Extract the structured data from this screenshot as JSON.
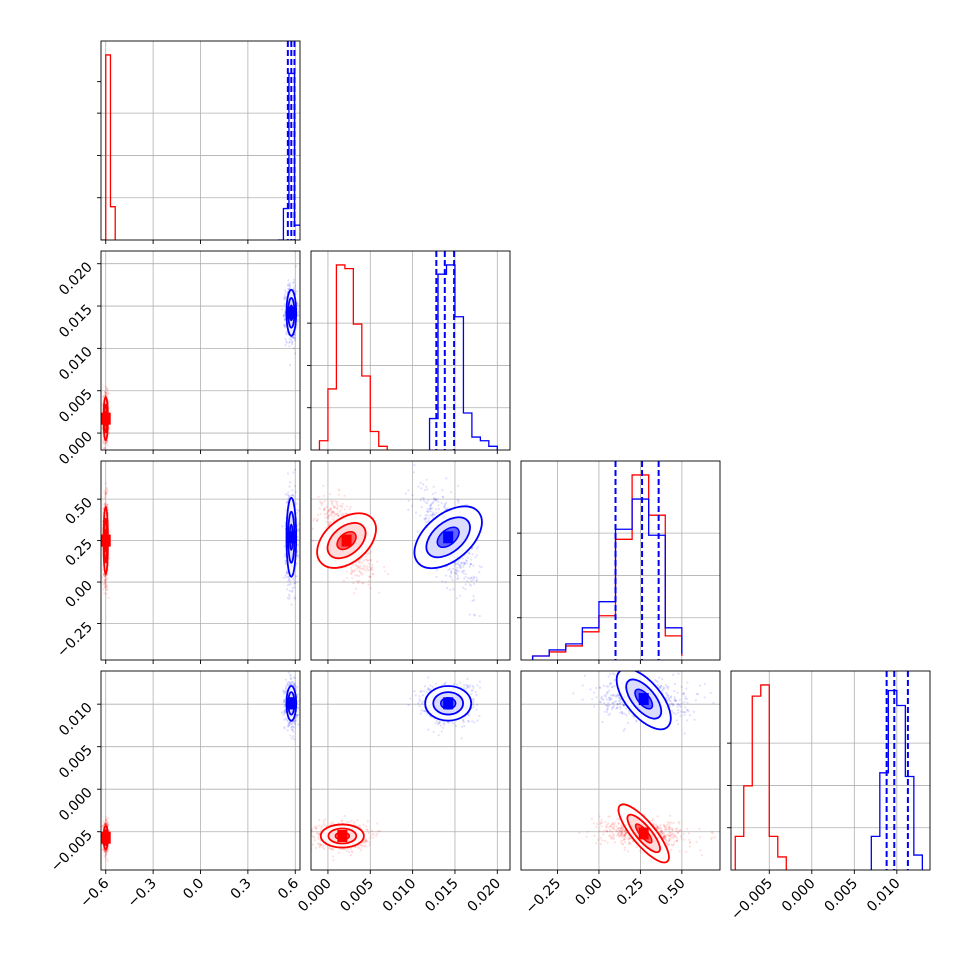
{
  "chart_data": {
    "type": "corner",
    "title": "",
    "parameters": [
      "",
      "",
      "",
      ""
    ],
    "series_colors": {
      "red": "#ff0000",
      "blue": "#0000ff"
    },
    "grid": true,
    "axes": {
      "p0": {
        "range": [
          -0.63,
          0.63
        ],
        "ticks": [
          -0.6,
          -0.3,
          0.0,
          0.3,
          0.6
        ],
        "tick_labels": [
          "−0.6",
          "−0.3",
          "0.0",
          "0.3",
          "0.6"
        ]
      },
      "p1": {
        "range": [
          -0.002,
          0.0215
        ],
        "ticks": [
          0.0,
          0.005,
          0.01,
          0.015,
          0.02
        ],
        "tick_labels": [
          "0.000",
          "0.005",
          "0.010",
          "0.015",
          "0.020"
        ]
      },
      "p2": {
        "range": [
          -0.47,
          0.73
        ],
        "ticks": [
          -0.25,
          0.0,
          0.25,
          0.5
        ],
        "tick_labels": [
          "−0.25",
          "0.00",
          "0.25",
          "0.50"
        ]
      },
      "p3": {
        "range": [
          -0.0095,
          0.0139
        ],
        "ticks": [
          -0.005,
          0.0,
          0.005,
          0.01
        ],
        "tick_labels": [
          "−0.005",
          "0.000",
          "0.005",
          "0.010"
        ]
      }
    },
    "histograms": {
      "p0": {
        "red": {
          "edges": [
            -0.63,
            -0.6,
            -0.57,
            -0.54
          ],
          "counts": [
            0.0,
            1.0,
            0.18,
            0.0
          ]
        },
        "blue": {
          "edges": [
            0.49,
            0.525,
            0.56,
            0.595,
            0.63
          ],
          "counts": [
            0.0,
            0.17,
            0.9,
            0.08,
            0.08
          ]
        },
        "blue_quantiles": [
          0.553,
          0.575,
          0.595
        ]
      },
      "p1": {
        "red": {
          "edges": [
            -0.001,
            0.0,
            0.001,
            0.002,
            0.003,
            0.004,
            0.005,
            0.006,
            0.007
          ],
          "counts": [
            0.05,
            0.33,
            1.0,
            0.98,
            0.68,
            0.4,
            0.1,
            0.02
          ]
        },
        "blue": {
          "edges": [
            0.012,
            0.013,
            0.014,
            0.015,
            0.016,
            0.017,
            0.018,
            0.019,
            0.02
          ],
          "counts": [
            0.17,
            0.95,
            1.0,
            0.72,
            0.2,
            0.07,
            0.05,
            0.02
          ]
        },
        "blue_quantiles": [
          0.0128,
          0.0138,
          0.0149
        ]
      },
      "p2": {
        "red": {
          "edges": [
            -0.4,
            -0.3,
            -0.2,
            -0.1,
            0.0,
            0.1,
            0.2,
            0.3,
            0.4,
            0.5
          ],
          "counts": [
            0.02,
            0.04,
            0.07,
            0.14,
            0.22,
            0.6,
            0.92,
            0.72,
            0.12,
            0.02
          ]
        },
        "blue": {
          "edges": [
            -0.4,
            -0.3,
            -0.2,
            -0.1,
            0.0,
            0.1,
            0.2,
            0.3,
            0.4,
            0.5
          ],
          "counts": [
            0.02,
            0.05,
            0.08,
            0.16,
            0.29,
            0.65,
            0.8,
            0.62,
            0.16,
            0.03
          ]
        },
        "blue_quantiles": [
          0.1,
          0.26,
          0.36
        ]
      },
      "p3": {
        "red": {
          "edges": [
            -0.009,
            -0.008,
            -0.007,
            -0.006,
            -0.005,
            -0.004,
            -0.003
          ],
          "counts": [
            0.18,
            0.45,
            0.93,
            0.99,
            0.18,
            0.07
          ]
        },
        "blue": {
          "edges": [
            0.007,
            0.008,
            0.009,
            0.01,
            0.011,
            0.012,
            0.013
          ],
          "counts": [
            0.18,
            0.52,
            0.96,
            0.88,
            0.5,
            0.08
          ]
        },
        "blue_quantiles": [
          0.0088,
          0.0097,
          0.0113
        ]
      }
    },
    "pairs": [
      {
        "x": "p0",
        "y": "p1",
        "red": {
          "mean": [
            -0.6,
            0.0017
          ],
          "sd": [
            0.008,
            0.0015
          ]
        },
        "blue": {
          "mean": [
            0.575,
            0.0142
          ],
          "sd": [
            0.018,
            0.0016
          ]
        }
      },
      {
        "x": "p0",
        "y": "p2",
        "red": {
          "mean": [
            -0.6,
            0.25
          ],
          "sd": [
            0.008,
            0.12
          ]
        },
        "blue": {
          "mean": [
            0.575,
            0.27
          ],
          "sd": [
            0.018,
            0.14
          ]
        }
      },
      {
        "x": "p0",
        "y": "p3",
        "red": {
          "mean": [
            -0.6,
            -0.0057
          ],
          "sd": [
            0.008,
            0.0008
          ]
        },
        "blue": {
          "mean": [
            0.575,
            0.0101
          ],
          "sd": [
            0.018,
            0.0012
          ]
        }
      },
      {
        "x": "p1",
        "y": "p2",
        "red": {
          "mean": [
            0.0022,
            0.25
          ],
          "sd": [
            0.0015,
            0.12
          ]
        },
        "blue": {
          "mean": [
            0.0142,
            0.27
          ],
          "sd": [
            0.0016,
            0.14
          ]
        }
      },
      {
        "x": "p1",
        "y": "p3",
        "red": {
          "mean": [
            0.0017,
            -0.0055
          ],
          "sd": [
            0.0015,
            0.0008
          ]
        },
        "blue": {
          "mean": [
            0.0142,
            0.0101
          ],
          "sd": [
            0.0016,
            0.0012
          ]
        }
      },
      {
        "x": "p2",
        "y": "p3",
        "red": {
          "mean": [
            0.27,
            -0.0052
          ],
          "sd": [
            0.13,
            0.0008
          ]
        },
        "blue": {
          "mean": [
            0.27,
            0.0106
          ],
          "sd": [
            0.13,
            0.0012
          ]
        }
      }
    ]
  }
}
